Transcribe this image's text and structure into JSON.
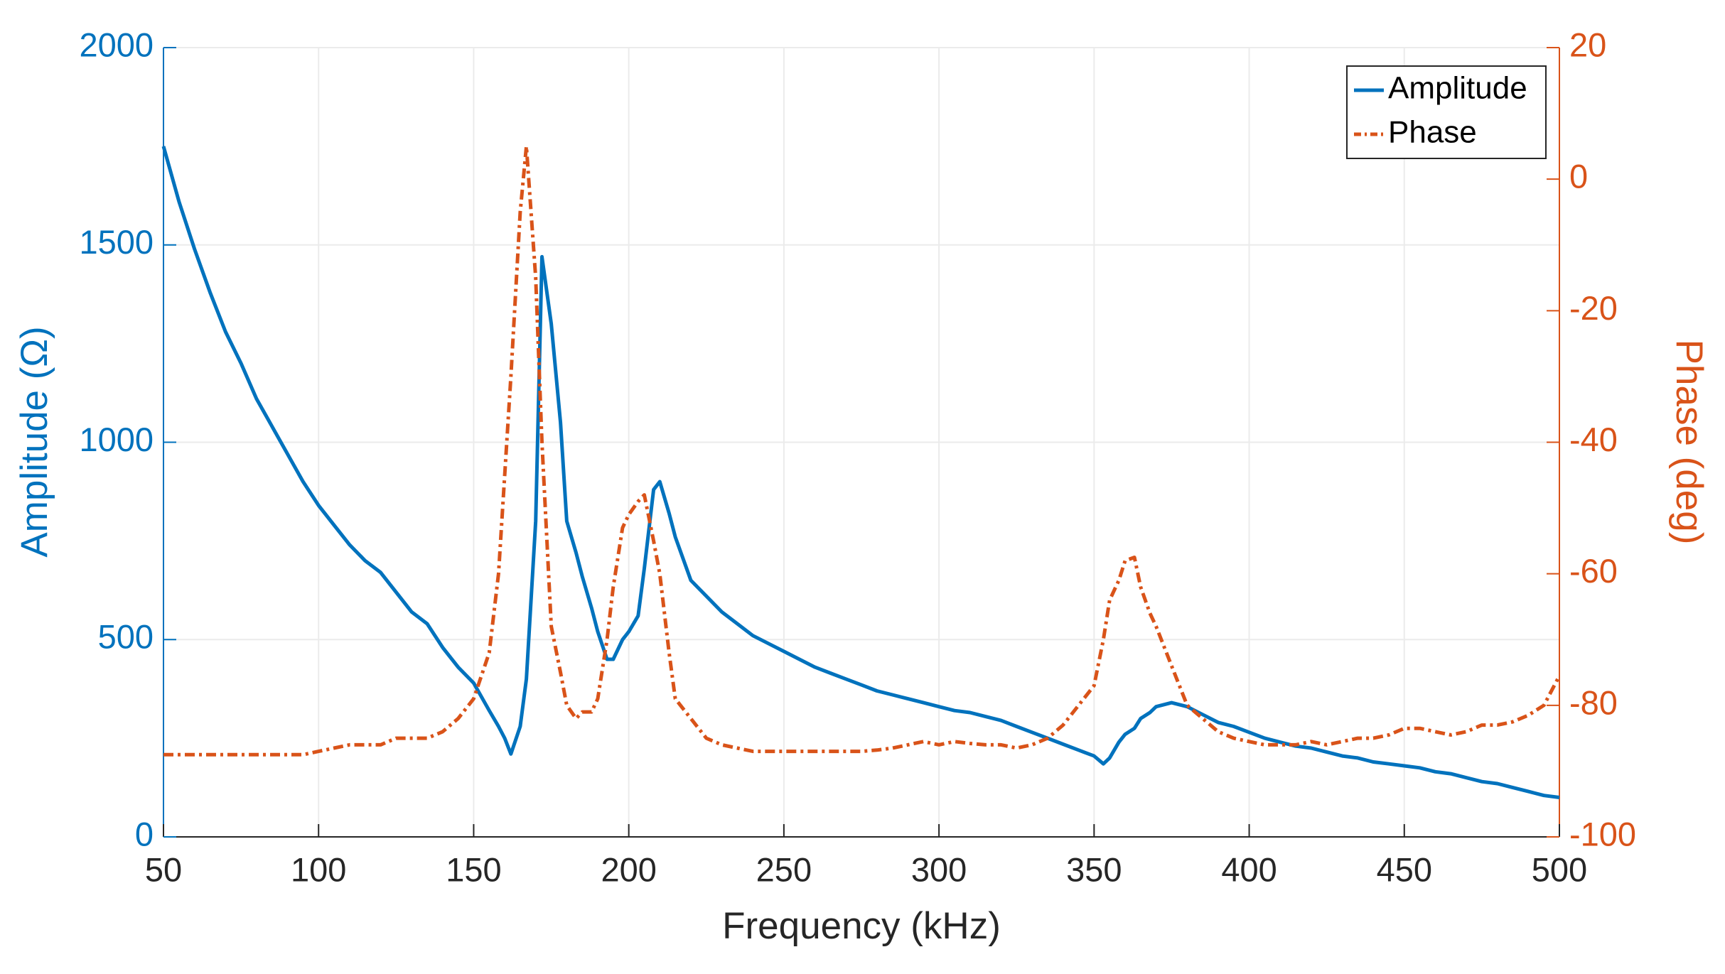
{
  "chart_data": {
    "type": "line",
    "xlabel": "Frequency (kHz)",
    "ylabel": "Amplitude (Ω)",
    "y2label": "Phase (deg)",
    "x": [
      50,
      55,
      60,
      65,
      70,
      75,
      80,
      85,
      90,
      95,
      100,
      105,
      110,
      115,
      120,
      125,
      130,
      135,
      140,
      145,
      150,
      155,
      158,
      160,
      162,
      165,
      167,
      170,
      172,
      175,
      178,
      180,
      183,
      185,
      188,
      190,
      193,
      195,
      198,
      200,
      203,
      205,
      208,
      210,
      213,
      215,
      220,
      225,
      230,
      235,
      240,
      245,
      250,
      255,
      260,
      265,
      270,
      275,
      280,
      285,
      290,
      295,
      300,
      305,
      310,
      315,
      320,
      325,
      330,
      335,
      340,
      345,
      350,
      353,
      355,
      358,
      360,
      363,
      365,
      368,
      370,
      375,
      380,
      385,
      390,
      395,
      400,
      405,
      410,
      415,
      420,
      425,
      430,
      435,
      440,
      445,
      450,
      455,
      460,
      465,
      470,
      475,
      480,
      485,
      490,
      495,
      500
    ],
    "series": [
      {
        "name": "Amplitude",
        "color": "#0072bd",
        "values": [
          1750,
          1610,
          1490,
          1380,
          1280,
          1200,
          1110,
          1040,
          970,
          900,
          840,
          790,
          740,
          700,
          670,
          620,
          570,
          540,
          480,
          430,
          390,
          320,
          280,
          250,
          210,
          280,
          400,
          800,
          1470,
          1300,
          1050,
          800,
          720,
          660,
          580,
          520,
          450,
          450,
          500,
          520,
          560,
          680,
          880,
          900,
          820,
          760,
          650,
          610,
          570,
          540,
          510,
          490,
          470,
          450,
          430,
          415,
          400,
          385,
          370,
          360,
          350,
          340,
          330,
          320,
          315,
          305,
          295,
          280,
          265,
          250,
          235,
          220,
          205,
          185,
          200,
          240,
          260,
          275,
          300,
          315,
          330,
          340,
          330,
          310,
          290,
          280,
          265,
          250,
          240,
          230,
          225,
          215,
          205,
          200,
          190,
          185,
          180,
          175,
          165,
          160,
          150,
          140,
          135,
          125,
          115,
          105,
          100
        ]
      },
      {
        "name": "Phase",
        "color": "#d95319",
        "axis": "y2",
        "dashed": true,
        "values": [
          -87.5,
          -87.5,
          -87.5,
          -87.5,
          -87.5,
          -87.5,
          -87.5,
          -87.5,
          -87.5,
          -87.5,
          -87,
          -86.5,
          -86,
          -86,
          -86,
          -85,
          -85,
          -85,
          -84,
          -82,
          -79,
          -72,
          -60,
          -45,
          -30,
          -5,
          5,
          -15,
          -40,
          -68,
          -75,
          -80,
          -82,
          -81,
          -81,
          -79,
          -70,
          -62,
          -53,
          -51,
          -49,
          -48,
          -55,
          -60,
          -72,
          -79,
          -82,
          -85,
          -86,
          -86.5,
          -87,
          -87,
          -87,
          -87,
          -87,
          -87,
          -87,
          -87,
          -86.8,
          -86.5,
          -86,
          -85.5,
          -86,
          -85.5,
          -85.8,
          -86,
          -86,
          -86.5,
          -86,
          -85,
          -83,
          -80,
          -77,
          -70,
          -64,
          -61,
          -58,
          -57.5,
          -62,
          -66,
          -68,
          -74,
          -80,
          -82,
          -84,
          -85,
          -85.5,
          -86,
          -86,
          -86,
          -85.5,
          -86,
          -85.5,
          -85,
          -85,
          -84.5,
          -83.5,
          -83.5,
          -84,
          -84.5,
          -84,
          -83,
          -83,
          -82.5,
          -81.5,
          -80,
          -75.5
        ]
      }
    ],
    "xlim": [
      50,
      500
    ],
    "xticks": [
      50,
      100,
      150,
      200,
      250,
      300,
      350,
      400,
      450,
      500
    ],
    "ylim": [
      0,
      2000
    ],
    "yticks": [
      0,
      500,
      1000,
      1500,
      2000
    ],
    "y2lim": [
      -100,
      20
    ],
    "y2ticks": [
      -100,
      -80,
      -60,
      -40,
      -20,
      0,
      20
    ],
    "grid": true,
    "legend": "upper right"
  }
}
